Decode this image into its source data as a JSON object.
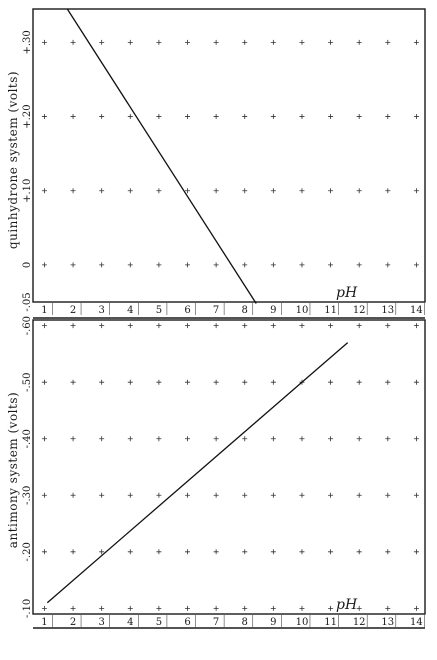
{
  "chart_data": [
    {
      "type": "line",
      "title": "",
      "xlabel": "pH",
      "ylabel": "quinhydrone system (volts)",
      "x_ticks": [
        "1",
        "2",
        "3",
        "4",
        "5",
        "6",
        "7",
        "8",
        "9",
        "10",
        "11",
        "12",
        "13",
        "14"
      ],
      "y_ticks": [
        {
          "value": 0.3,
          "label": "+.30"
        },
        {
          "value": 0.2,
          "label": "+.20"
        },
        {
          "value": 0.1,
          "label": "+.10"
        },
        {
          "value": 0.0,
          "label": "0"
        },
        {
          "value": -0.05,
          "label": "-.05"
        }
      ],
      "xlim": [
        0.6,
        14.3
      ],
      "ylim": [
        -0.05,
        0.345
      ],
      "grid": "crosses",
      "series": [
        {
          "values": [
            {
              "x": 1.8,
              "y": 0.345
            },
            {
              "x": 8.4,
              "y": -0.052
            }
          ]
        }
      ]
    },
    {
      "type": "line",
      "title": "",
      "xlabel": "pH",
      "ylabel": "antimony system (volts)",
      "x_ticks": [
        "1",
        "2",
        "3",
        "4",
        "5",
        "6",
        "7",
        "8",
        "9",
        "10",
        "11",
        "12",
        "13",
        "14"
      ],
      "y_ticks": [
        {
          "value": -0.6,
          "label": "-.60"
        },
        {
          "value": -0.5,
          "label": "-.50"
        },
        {
          "value": -0.4,
          "label": "-.40"
        },
        {
          "value": -0.3,
          "label": "-.30"
        },
        {
          "value": -0.2,
          "label": "-.20"
        },
        {
          "value": -0.1,
          "label": "-.10"
        }
      ],
      "xlim": [
        0.6,
        14.3
      ],
      "ylim": [
        -0.09,
        -0.61
      ],
      "grid": "crosses",
      "series": [
        {
          "values": [
            {
              "x": 1.1,
              "y": -0.11
            },
            {
              "x": 11.6,
              "y": -0.57
            }
          ]
        }
      ]
    }
  ]
}
